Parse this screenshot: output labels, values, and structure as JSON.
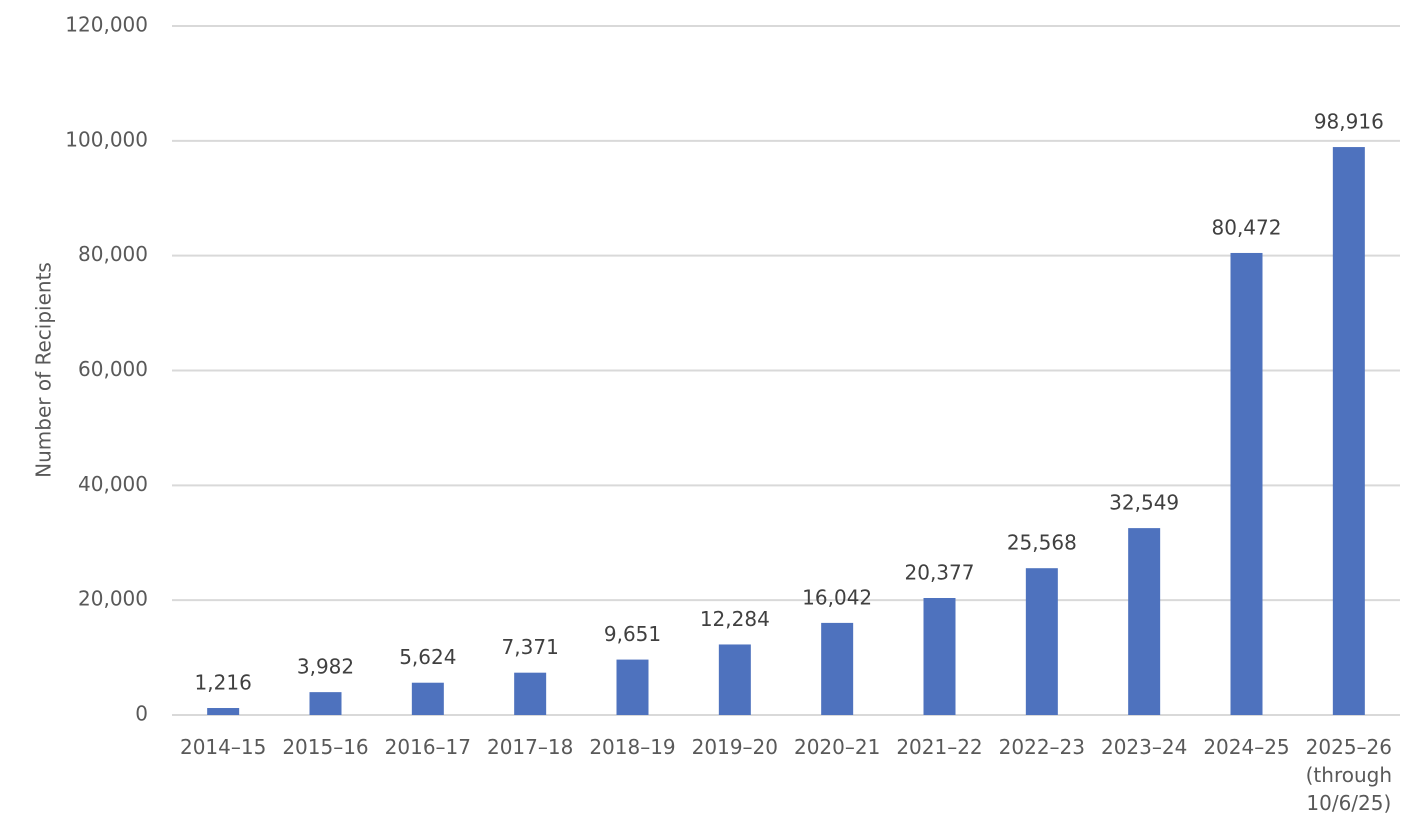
{
  "chart_data": {
    "type": "bar",
    "y_label": "Number of Recipients",
    "categories": [
      "2014–15",
      "2015–16",
      "2016–17",
      "2017–18",
      "2018–19",
      "2019–20",
      "2020–21",
      "2021–22",
      "2022–23",
      "2023–24",
      "2024–25",
      "2025–26 (through 10/6/25)"
    ],
    "values": [
      1216,
      3982,
      5624,
      7371,
      9651,
      12284,
      16042,
      20377,
      25568,
      32549,
      80472,
      98916
    ],
    "value_labels": [
      "1,216",
      "3,982",
      "5,624",
      "7,371",
      "9,651",
      "12,284",
      "16,042",
      "20,377",
      "25,568",
      "32,549",
      "80,472",
      "98,916"
    ],
    "color": "#4e72be",
    "ylim": [
      0,
      120000
    ],
    "yticks": [
      0,
      {
        "value": 20000,
        "label": "20,000"
      },
      {
        "value": 40000,
        "label": "40,000"
      },
      {
        "value": 60000,
        "label": "60,000"
      },
      {
        "value": 80000,
        "label": "80,000"
      },
      {
        "value": 100000,
        "label": "100,000"
      },
      {
        "value": 120000,
        "label": "120,000"
      }
    ],
    "grid": true
  }
}
